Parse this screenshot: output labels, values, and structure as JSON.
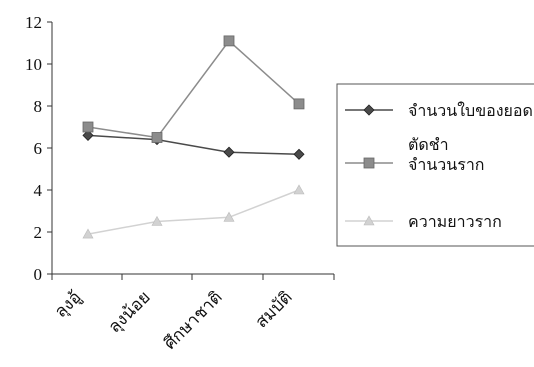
{
  "chart_data": {
    "type": "line",
    "categories": [
      "ลุงอู้",
      "ลุงน้อย",
      "ศึกษาชาติ",
      "สมบัติ"
    ],
    "ylim": [
      0,
      12
    ],
    "yticks": [
      0,
      2,
      4,
      6,
      8,
      10,
      12
    ],
    "grid": false,
    "legend_position": "right",
    "series": [
      {
        "name": "จำนวนใบของยอด",
        "values": [
          6.6,
          6.4,
          5.8,
          5.7
        ],
        "color": "#4a4a4a",
        "marker": "diamond"
      },
      {
        "name": "ตัดชำ จำนวนราก",
        "legend_lines": [
          "ตัดชำ",
          "จำนวนราก"
        ],
        "values": [
          7.0,
          6.5,
          11.1,
          8.1
        ],
        "color": "#8c8c8c",
        "marker": "square"
      },
      {
        "name": "ความยาวราก",
        "values": [
          1.9,
          2.5,
          2.7,
          4.0
        ],
        "color": "#d2d2d2",
        "marker": "triangle"
      }
    ]
  }
}
